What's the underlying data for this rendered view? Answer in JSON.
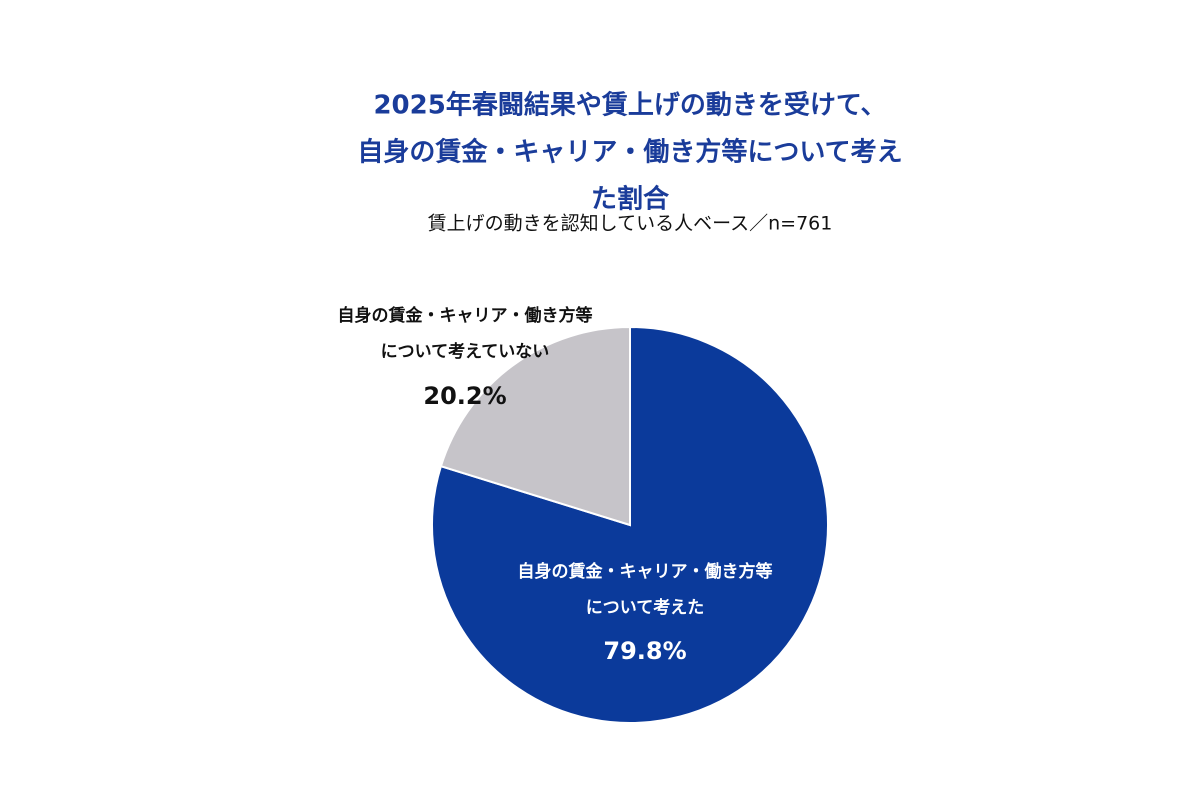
{
  "chart_data": {
    "type": "pie",
    "title": "2025年春闘結果や賃上げの動きを受けて、\n自身の賃金・キャリア・働き方等について考えた割合",
    "subtitle": "賃上げの動きを認知している人ベース／n=761",
    "categories": [
      "自身の賃金・キャリア・働き方等\nについて考えた",
      "自身の賃金・キャリア・働き方等\nについて考えていない"
    ],
    "values": [
      79.8,
      20.2
    ],
    "value_labels": [
      "79.8%",
      "20.2%"
    ],
    "colors": [
      "#0b3a9b",
      "#c6c4c9"
    ]
  }
}
